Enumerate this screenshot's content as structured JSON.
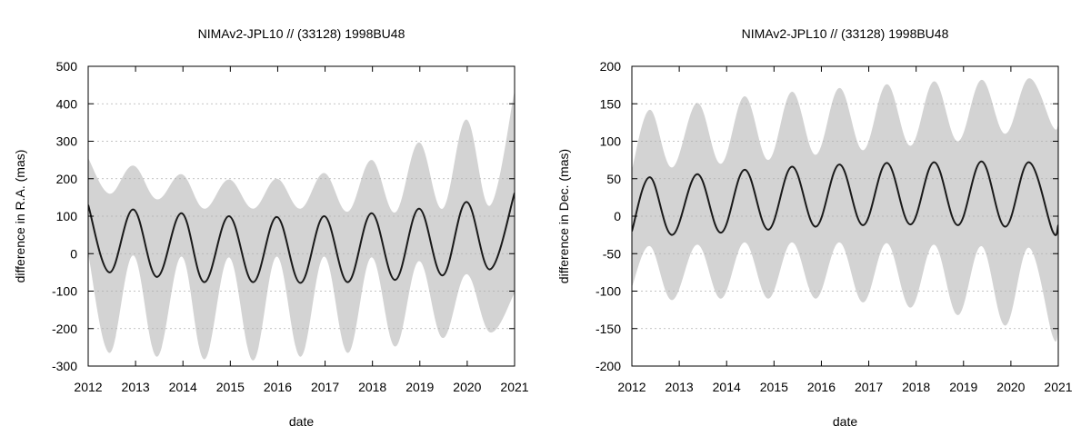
{
  "colors": {
    "band": "#d3d3d3",
    "line": "#1a1a1a",
    "grid": "#b0b0b0",
    "frame": "#000000"
  },
  "chart_data": [
    {
      "type": "line",
      "title": "NIMAv2-JPL10 // (33128) 1998BU48",
      "xlabel": "date",
      "ylabel": "difference in R.A. (mas)",
      "xlim": [
        2012,
        2021
      ],
      "ylim": [
        -300,
        500
      ],
      "xticks": [
        2012,
        2013,
        2014,
        2015,
        2016,
        2017,
        2018,
        2019,
        2020,
        2021
      ],
      "yticks": [
        -300,
        -200,
        -100,
        0,
        100,
        200,
        300,
        400,
        500
      ],
      "grid": "horizontal-dotted",
      "series": [
        {
          "style": "line",
          "x": [
            2012.0,
            2012.45,
            2012.95,
            2013.45,
            2013.97,
            2014.45,
            2014.97,
            2015.48,
            2015.98,
            2016.48,
            2016.98,
            2017.48,
            2017.98,
            2018.48,
            2018.98,
            2019.48,
            2019.98,
            2020.48,
            2021.0
          ],
          "y": [
            130,
            -50,
            118,
            -62,
            108,
            -76,
            100,
            -76,
            98,
            -78,
            100,
            -76,
            108,
            -70,
            120,
            -58,
            138,
            -42,
            162
          ]
        },
        {
          "style": "band",
          "x": [
            2012.0,
            2012.45,
            2012.95,
            2013.45,
            2013.97,
            2014.45,
            2014.97,
            2015.48,
            2015.98,
            2016.48,
            2016.98,
            2017.48,
            2017.98,
            2018.48,
            2018.98,
            2019.48,
            2019.98,
            2020.48,
            2021.0
          ],
          "upper": [
            255,
            160,
            235,
            145,
            212,
            120,
            198,
            120,
            200,
            120,
            215,
            112,
            250,
            110,
            297,
            120,
            358,
            128,
            435
          ],
          "lower": [
            0,
            -265,
            -5,
            -275,
            -8,
            -282,
            -10,
            -285,
            -8,
            -275,
            -8,
            -265,
            -10,
            -248,
            -20,
            -225,
            -55,
            -210,
            -105
          ]
        }
      ]
    },
    {
      "type": "line",
      "title": "NIMAv2-JPL10 // (33128) 1998BU48",
      "xlabel": "date",
      "ylabel": "difference in Dec. (mas)",
      "xlim": [
        2012,
        2021
      ],
      "ylim": [
        -200,
        200
      ],
      "xticks": [
        2012,
        2013,
        2014,
        2015,
        2016,
        2017,
        2018,
        2019,
        2020,
        2021
      ],
      "yticks": [
        -200,
        -150,
        -100,
        -50,
        0,
        50,
        100,
        150,
        200
      ],
      "grid": "horizontal-dotted",
      "series": [
        {
          "style": "line",
          "x": [
            2012.0,
            2012.38,
            2012.85,
            2013.38,
            2013.88,
            2014.38,
            2014.88,
            2015.38,
            2015.88,
            2016.38,
            2016.88,
            2017.38,
            2017.88,
            2018.38,
            2018.88,
            2019.38,
            2019.88,
            2020.38,
            2020.88,
            2021.0
          ],
          "y": [
            -20,
            52,
            -25,
            56,
            -22,
            62,
            -18,
            66,
            -14,
            69,
            -12,
            71,
            -11,
            72,
            -12,
            73,
            -14,
            72,
            -20,
            -12
          ]
        },
        {
          "style": "band",
          "x": [
            2012.0,
            2012.38,
            2012.85,
            2013.38,
            2013.88,
            2014.38,
            2014.88,
            2015.38,
            2015.88,
            2016.38,
            2016.88,
            2017.38,
            2017.88,
            2018.38,
            2018.88,
            2019.38,
            2019.88,
            2020.38,
            2020.88,
            2021.0
          ],
          "upper": [
            62,
            142,
            65,
            151,
            70,
            160,
            75,
            166,
            82,
            171,
            88,
            176,
            94,
            180,
            100,
            182,
            110,
            184,
            120,
            122
          ],
          "lower": [
            -95,
            -40,
            -112,
            -38,
            -110,
            -35,
            -110,
            -35,
            -110,
            -35,
            -115,
            -36,
            -122,
            -38,
            -132,
            -40,
            -146,
            -42,
            -160,
            -152
          ]
        }
      ]
    }
  ]
}
